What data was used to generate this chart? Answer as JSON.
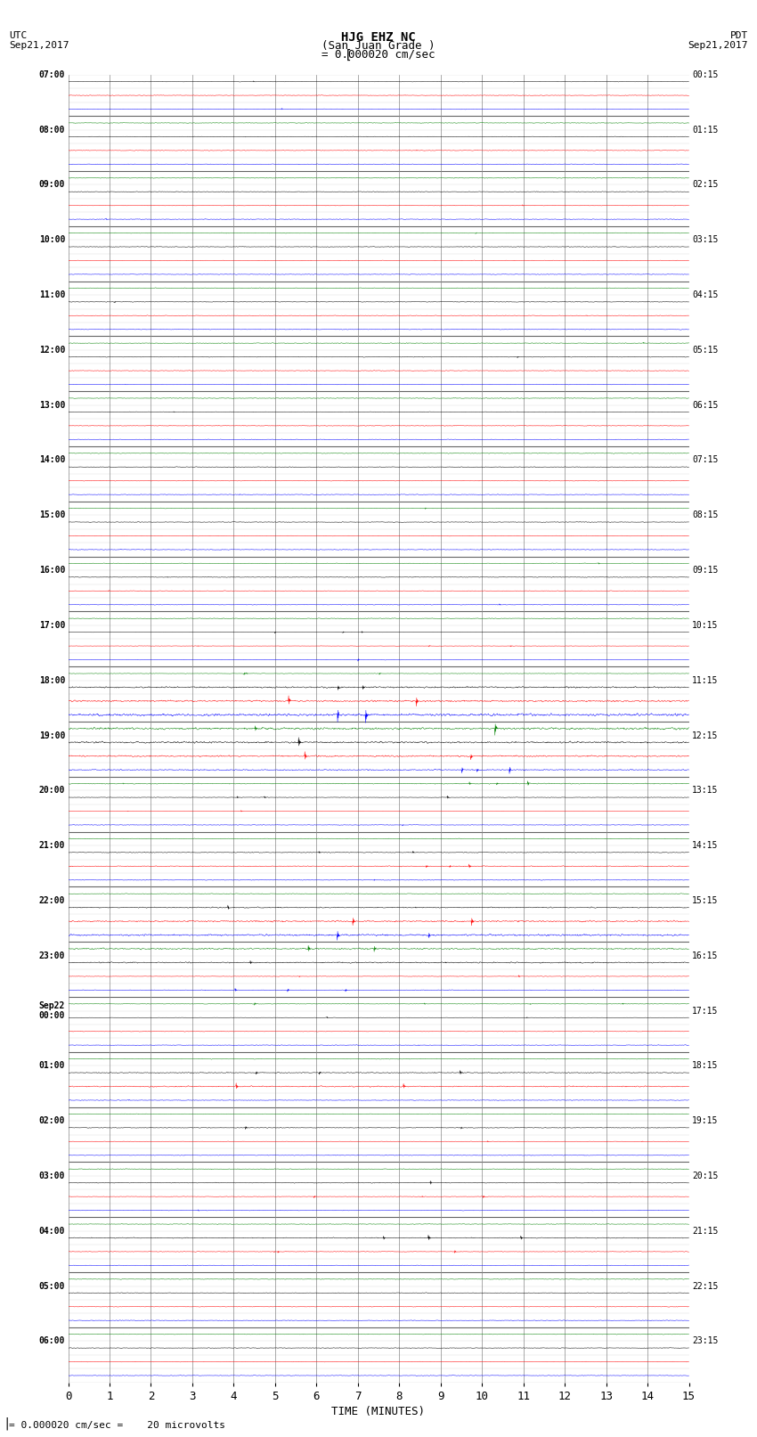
{
  "title_line1": "HJG EHZ NC",
  "title_line2": "(San Juan Grade )",
  "scale_label": "= 0.000020 cm/sec",
  "bottom_label": "= 0.000020 cm/sec =    20 microvolts",
  "utc_label": "UTC\nSep21,2017",
  "pdt_label": "PDT\nSep21,2017",
  "xlabel": "TIME (MINUTES)",
  "left_times": [
    "07:00",
    "",
    "",
    "",
    "08:00",
    "",
    "",
    "",
    "09:00",
    "",
    "",
    "",
    "10:00",
    "",
    "",
    "",
    "11:00",
    "",
    "",
    "",
    "12:00",
    "",
    "",
    "",
    "13:00",
    "",
    "",
    "",
    "14:00",
    "",
    "",
    "",
    "15:00",
    "",
    "",
    "",
    "16:00",
    "",
    "",
    "",
    "17:00",
    "",
    "",
    "",
    "18:00",
    "",
    "",
    "",
    "19:00",
    "",
    "",
    "",
    "20:00",
    "",
    "",
    "",
    "21:00",
    "",
    "",
    "",
    "22:00",
    "",
    "",
    "",
    "23:00",
    "",
    "",
    "",
    "Sep22\n00:00",
    "",
    "",
    "",
    "01:00",
    "",
    "",
    "",
    "02:00",
    "",
    "",
    "",
    "03:00",
    "",
    "",
    "",
    "04:00",
    "",
    "",
    "",
    "05:00",
    "",
    "",
    "",
    "06:00",
    "",
    ""
  ],
  "right_times": [
    "00:15",
    "",
    "",
    "",
    "01:15",
    "",
    "",
    "",
    "02:15",
    "",
    "",
    "",
    "03:15",
    "",
    "",
    "",
    "04:15",
    "",
    "",
    "",
    "05:15",
    "",
    "",
    "",
    "06:15",
    "",
    "",
    "",
    "07:15",
    "",
    "",
    "",
    "08:15",
    "",
    "",
    "",
    "09:15",
    "",
    "",
    "",
    "10:15",
    "",
    "",
    "",
    "11:15",
    "",
    "",
    "",
    "12:15",
    "",
    "",
    "",
    "13:15",
    "",
    "",
    "",
    "14:15",
    "",
    "",
    "",
    "15:15",
    "",
    "",
    "",
    "16:15",
    "",
    "",
    "",
    "17:15",
    "",
    "",
    "",
    "18:15",
    "",
    "",
    "",
    "19:15",
    "",
    "",
    "",
    "20:15",
    "",
    "",
    "",
    "21:15",
    "",
    "",
    "",
    "22:15",
    "",
    "",
    "",
    "23:15",
    "",
    ""
  ],
  "n_rows": 95,
  "colors": [
    "black",
    "red",
    "blue",
    "green"
  ],
  "bg_color": "white",
  "grid_color": "#888888",
  "xmin": 0,
  "xmax": 15,
  "figwidth": 8.5,
  "figheight": 16.13,
  "dpi": 100,
  "base_noise": 0.018,
  "n_points": 1800,
  "event_rows": {
    "40": 0.5,
    "41": 0.6,
    "42": 0.8,
    "43": 0.7,
    "44": 2.5,
    "45": 3.0,
    "46": 4.0,
    "47": 3.5,
    "48": 3.0,
    "49": 2.5,
    "50": 2.0,
    "51": 1.5,
    "52": 0.8,
    "53": 0.6,
    "56": 1.2,
    "57": 1.5,
    "60": 1.8,
    "61": 2.5,
    "62": 3.0,
    "63": 2.5,
    "64": 2.0,
    "65": 0.8,
    "66": 1.0,
    "67": 0.8,
    "68": 0.6,
    "72": 1.5,
    "73": 2.0,
    "76": 1.0,
    "77": 0.8,
    "80": 1.2,
    "81": 0.8,
    "84": 1.5,
    "85": 1.0
  }
}
